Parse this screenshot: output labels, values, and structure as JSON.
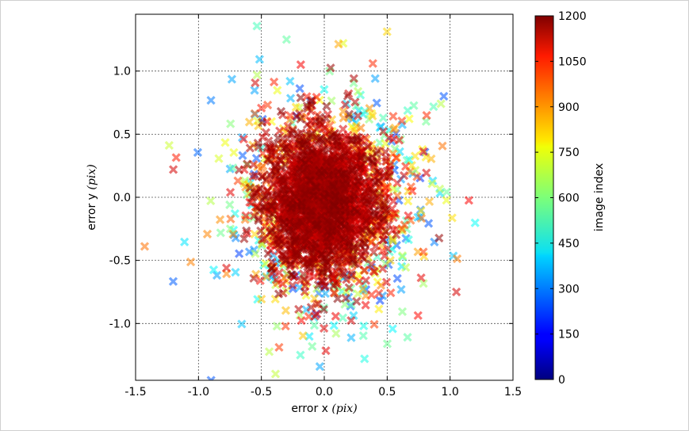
{
  "chart_data": {
    "type": "scatter",
    "marker": "x",
    "xlabel": "error x",
    "xlabel_unit": "(pix)",
    "ylabel": "error y",
    "ylabel_unit": "(pix)",
    "xlim": [
      -1.5,
      1.5
    ],
    "ylim": [
      -1.45,
      1.45
    ],
    "x_ticks": [
      "-1.5",
      "-1.0",
      "-0.5",
      "0.0",
      "0.5",
      "1.0",
      "1.5"
    ],
    "y_ticks": [
      "-1.0",
      "-0.5",
      "0.0",
      "0.5",
      "1.0"
    ],
    "grid": true,
    "colorbar": {
      "label": "image index",
      "range": [
        0,
        1200
      ],
      "ticks": [
        "0",
        "150",
        "300",
        "450",
        "600",
        "750",
        "900",
        "1050",
        "1200"
      ],
      "colormap": "jet"
    },
    "sample_points": [
      {
        "x": 0.0,
        "y": 0.0,
        "c": 1200
      },
      {
        "x": -0.3,
        "y": 1.25,
        "c": 560
      },
      {
        "x": 0.15,
        "y": 1.22,
        "c": 720
      },
      {
        "x": -0.9,
        "y": -1.45,
        "c": 250
      },
      {
        "x": 0.32,
        "y": -1.28,
        "c": 480
      },
      {
        "x": -1.2,
        "y": 0.22,
        "c": 1100
      },
      {
        "x": 1.05,
        "y": -0.75,
        "c": 1100
      },
      {
        "x": 0.95,
        "y": 0.8,
        "c": 250
      }
    ]
  }
}
